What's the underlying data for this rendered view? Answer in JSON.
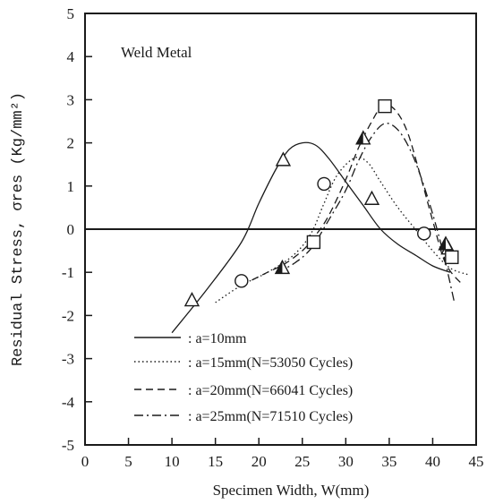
{
  "chart_data": {
    "type": "line",
    "annotation": "Weld Metal",
    "xlabel": "Specimen Width, W(mm)",
    "ylabel": "Residual Stress, σres (Kg/mm²)",
    "xlim": [
      0,
      45
    ],
    "ylim": [
      -5,
      5
    ],
    "x_ticks": [
      "0",
      "5",
      "10",
      "15",
      "20",
      "25",
      "30",
      "35",
      "40",
      "45"
    ],
    "y_ticks": [
      "5",
      "4",
      "3",
      "2",
      "1",
      "0",
      "-1",
      "-2",
      "-3",
      "-4",
      "-5"
    ],
    "grid": false,
    "legend_position": "bottom-right",
    "series": [
      {
        "name": ": a=10mm",
        "line_style": "solid",
        "marker": "triangle",
        "curve": [
          [
            10,
            -2.4
          ],
          [
            14,
            -1.4
          ],
          [
            18,
            -0.3
          ],
          [
            20,
            0.6
          ],
          [
            22,
            1.4
          ],
          [
            23.5,
            1.85
          ],
          [
            25,
            2.0
          ],
          [
            26.5,
            1.95
          ],
          [
            28,
            1.65
          ],
          [
            30,
            1.1
          ],
          [
            32,
            0.55
          ],
          [
            34,
            0.0
          ],
          [
            36,
            -0.35
          ],
          [
            38,
            -0.6
          ],
          [
            40,
            -0.85
          ],
          [
            42,
            -1.0
          ]
        ],
        "points": [
          [
            12.3,
            -1.65
          ],
          [
            22.8,
            1.6
          ],
          [
            33,
            0.7
          ],
          [
            41.8,
            -0.45
          ]
        ]
      },
      {
        "name": ": a=15mm(N=53050 Cycles)",
        "line_style": "dotted",
        "marker": "circle",
        "curve": [
          [
            15,
            -1.7
          ],
          [
            18,
            -1.3
          ],
          [
            21,
            -1.0
          ],
          [
            24,
            -0.6
          ],
          [
            26,
            -0.1
          ],
          [
            27.5,
            0.6
          ],
          [
            29,
            1.25
          ],
          [
            31,
            1.65
          ],
          [
            32.5,
            1.55
          ],
          [
            34,
            1.1
          ],
          [
            36,
            0.5
          ],
          [
            38,
            0.0
          ],
          [
            40,
            -0.5
          ],
          [
            42,
            -0.9
          ],
          [
            44,
            -1.05
          ]
        ],
        "points": [
          [
            18,
            -1.2
          ],
          [
            27.5,
            1.05
          ],
          [
            39,
            -0.1
          ]
        ]
      },
      {
        "name": ": a=20mm(N=66041 Cycles)",
        "line_style": "dashed",
        "marker": "square",
        "curve": [
          [
            18,
            -1.3
          ],
          [
            21,
            -1.0
          ],
          [
            23,
            -0.8
          ],
          [
            25,
            -0.5
          ],
          [
            26.5,
            -0.15
          ],
          [
            28,
            0.3
          ],
          [
            30,
            1.15
          ],
          [
            31.5,
            1.9
          ],
          [
            33,
            2.5
          ],
          [
            34.2,
            2.85
          ],
          [
            35.5,
            2.8
          ],
          [
            37,
            2.3
          ],
          [
            38.5,
            1.3
          ],
          [
            40,
            0.2
          ],
          [
            41.5,
            -0.8
          ],
          [
            43.5,
            -1.3
          ]
        ],
        "points": [
          [
            26.3,
            -0.3
          ],
          [
            34.5,
            2.85
          ],
          [
            42.2,
            -0.65
          ]
        ]
      },
      {
        "name": ": a=25mm(N=71510 Cycles)",
        "line_style": "dashdot",
        "marker": "filled-triangle",
        "curve": [
          [
            22,
            -1.0
          ],
          [
            24,
            -0.8
          ],
          [
            26,
            -0.45
          ],
          [
            28,
            0.2
          ],
          [
            30,
            0.9
          ],
          [
            31.5,
            1.6
          ],
          [
            33,
            2.15
          ],
          [
            34.5,
            2.45
          ],
          [
            36,
            2.3
          ],
          [
            37.5,
            1.8
          ],
          [
            39,
            1.0
          ],
          [
            40.5,
            0.0
          ],
          [
            41.5,
            -0.8
          ],
          [
            42.5,
            -1.7
          ]
        ],
        "points": [
          [
            22.7,
            -0.9
          ],
          [
            32,
            2.1
          ],
          [
            41.5,
            -0.35
          ]
        ]
      }
    ]
  }
}
